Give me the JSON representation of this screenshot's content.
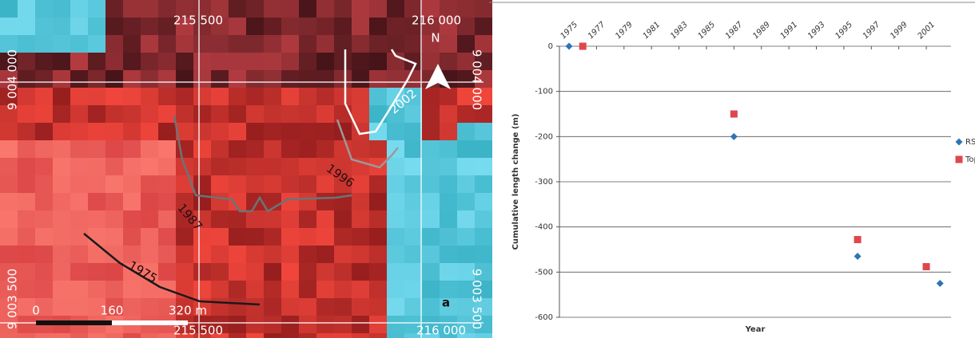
{
  "map": {
    "top_labels": [
      "215 500",
      "216 000"
    ],
    "bottom_labels": [
      "215 500",
      "216 000"
    ],
    "left_labels": [
      "9 004 000",
      "9 003 500"
    ],
    "right_labels": [
      "9 004 000",
      "9 003 500"
    ],
    "glacier_years": [
      "2002",
      "1996",
      "1987",
      "1975"
    ],
    "scale": [
      "0",
      "160",
      "320 m"
    ],
    "panel": "a",
    "north": "N"
  },
  "chart_data": {
    "type": "scatter",
    "x_label": "Year",
    "y_label": "Cumulative length change (m)",
    "xlim": [
      1974.3,
      2002.8
    ],
    "xticks": [
      1975,
      1977,
      1979,
      1981,
      1983,
      1985,
      1987,
      1989,
      1991,
      1993,
      1995,
      1997,
      1999,
      2001
    ],
    "ylim": [
      -600,
      0
    ],
    "yticks": [
      0,
      -100,
      -200,
      -300,
      -400,
      -500,
      -600
    ],
    "grid": true,
    "legend": "right",
    "series": [
      {
        "name": "RS",
        "color": "#2e75b6",
        "marker": "diamond",
        "x": [
          1975,
          1987,
          1996,
          2002
        ],
        "values": [
          0,
          -200,
          -465,
          -525
        ]
      },
      {
        "name": "Topo",
        "color": "#e0474c",
        "marker": "square",
        "x": [
          1976,
          1987,
          1996,
          2001
        ],
        "values": [
          0,
          -150,
          -428,
          -488
        ]
      }
    ]
  }
}
